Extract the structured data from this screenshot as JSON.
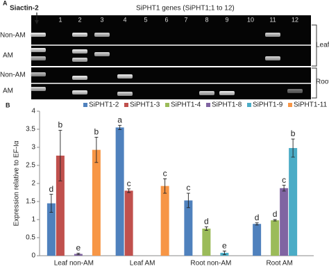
{
  "panel_a": {
    "label": "A",
    "control": "Siactin-2",
    "genes": "SiPHT1 genes (SiPHT1;1 to 12)",
    "lanes": [
      "1",
      "2",
      "3",
      "4",
      "5",
      "6",
      "7",
      "8",
      "9",
      "10",
      "11",
      "12"
    ],
    "rows": [
      "Non-AM",
      "AM",
      "Non-AM",
      "AM"
    ],
    "tissues": [
      "Leaf",
      "Root"
    ]
  },
  "chart_data": {
    "type": "bar",
    "label": "B",
    "y_label": "Expression relative to EF-Iα",
    "categories": [
      "Leaf non-AM",
      "Leaf AM",
      "Root non-AM",
      "Root AM"
    ],
    "ylim": [
      0,
      4
    ],
    "yticks": [
      0,
      0.5,
      1,
      1.5,
      2,
      2.5,
      3,
      3.5,
      4
    ],
    "legend": "top",
    "series": [
      {
        "name": "SiPHT1-2",
        "color": "#4f81bd",
        "values": [
          1.45,
          3.55,
          1.53,
          0.88
        ],
        "errors": [
          0.25,
          0.06,
          0.2,
          0.03
        ],
        "letters": [
          "d",
          "a",
          "c",
          "d"
        ]
      },
      {
        "name": "SiPHT1-3",
        "color": "#c0504d",
        "values": [
          2.77,
          1.8,
          null,
          null
        ],
        "errors": [
          0.7,
          0.05,
          null,
          null
        ],
        "letters": [
          "b",
          "c",
          null,
          null
        ]
      },
      {
        "name": "SiPHT1-4",
        "color": "#9bbb59",
        "values": [
          null,
          null,
          0.75,
          0.98
        ],
        "errors": [
          null,
          null,
          0.05,
          0.02
        ],
        "letters": [
          null,
          null,
          "d",
          "d"
        ]
      },
      {
        "name": "SiPHT1-8",
        "color": "#8064a2",
        "values": [
          0.05,
          null,
          null,
          1.87
        ],
        "errors": [
          0.02,
          null,
          null,
          0.08
        ],
        "letters": [
          "e",
          null,
          null,
          "c"
        ]
      },
      {
        "name": "SiPHT1-9",
        "color": "#4bacc6",
        "values": [
          null,
          null,
          0.08,
          2.98
        ],
        "errors": [
          null,
          null,
          0.05,
          0.25
        ],
        "letters": [
          null,
          null,
          "e",
          "b"
        ]
      },
      {
        "name": "SiPHT1-11",
        "color": "#f79646",
        "values": [
          2.93,
          1.93,
          null,
          null
        ],
        "errors": [
          0.35,
          0.2,
          null,
          null
        ],
        "letters": [
          "b",
          "c",
          null,
          null
        ]
      }
    ]
  }
}
